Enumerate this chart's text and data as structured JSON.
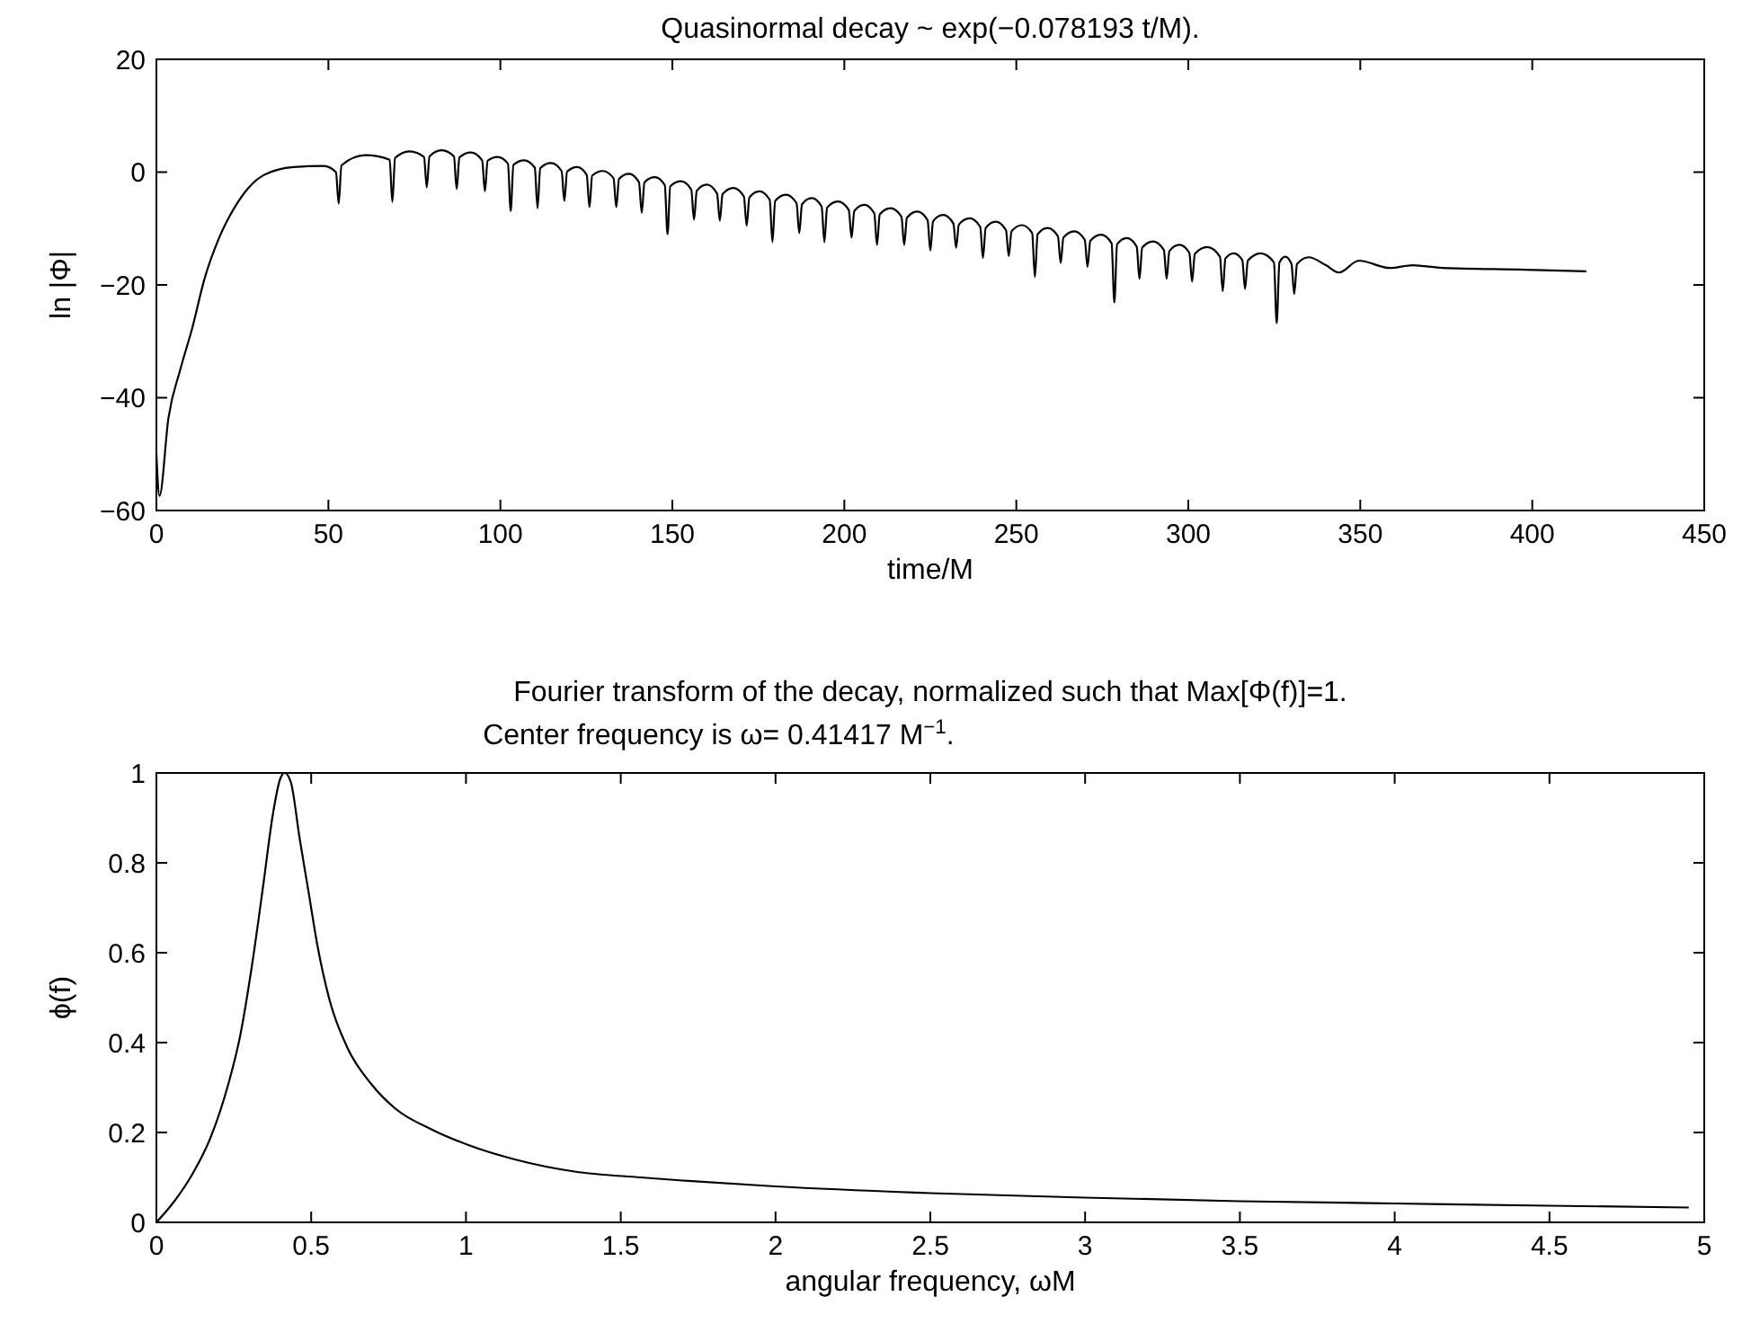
{
  "chart_data": [
    {
      "type": "line",
      "title": "Quasinormal decay ~ exp(−0.078193 t/M).",
      "xlabel": "time/M",
      "ylabel": "ln |Φ|",
      "xlim": [
        0,
        450
      ],
      "ylim": [
        -60,
        20
      ],
      "xticks": [
        0,
        50,
        100,
        150,
        200,
        250,
        300,
        350,
        400,
        450
      ],
      "yticks": [
        {
          "value": -60,
          "label": "−60"
        },
        {
          "value": -40,
          "label": "−40"
        },
        {
          "value": -20,
          "label": "−20"
        },
        0,
        20
      ],
      "series": [
        {
          "color": "#000000",
          "x": [
            0,
            0.9,
            3.5,
            6.9,
            10.4,
            13.9,
            18.2,
            22.6,
            26.9,
            31.3,
            39.9,
            48.6,
            52.2,
            53,
            53.8,
            60.8,
            67.8,
            68.6,
            69.4,
            73.6,
            77.8,
            78.6,
            79.4,
            82.9,
            86.5,
            87.3,
            88.1,
            91.4,
            94.7,
            95.5,
            96.3,
            99.2,
            102.2,
            103,
            103.8,
            106.9,
            110,
            110.8,
            111.6,
            114.7,
            117.8,
            118.6,
            119.4,
            122.3,
            125.1,
            125.9,
            126.7,
            129.8,
            132.9,
            133.7,
            134.5,
            137.4,
            140.3,
            141.1,
            141.9,
            144.9,
            147.8,
            148.6,
            149.4,
            152.5,
            155.5,
            156.3,
            157.1,
            160,
            163,
            163.8,
            164.6,
            167.7,
            170.8,
            171.6,
            172.4,
            175.3,
            178.3,
            179.1,
            179.9,
            183,
            186.1,
            186.9,
            187.7,
            190.5,
            193.4,
            194.2,
            195,
            198.1,
            201.3,
            202.1,
            202.9,
            205.8,
            208.7,
            209.5,
            210.3,
            213.4,
            216.6,
            217.4,
            218.2,
            221.2,
            224.2,
            225,
            225.8,
            228.7,
            231.7,
            232.5,
            233.3,
            236.4,
            239.5,
            240.3,
            241.1,
            244,
            247,
            247.8,
            248.6,
            251.6,
            254.6,
            255.4,
            256.2,
            259.1,
            262.1,
            262.9,
            263.7,
            266.8,
            269.9,
            270.7,
            271.5,
            274.6,
            277.7,
            278.5,
            279.3,
            282.1,
            285,
            285.8,
            286.6,
            289.7,
            292.9,
            293.7,
            294.5,
            297.4,
            300.3,
            301.1,
            301.9,
            305.5,
            309.2,
            310,
            310.8,
            313.2,
            315.7,
            316.5,
            317.3,
            321,
            324.9,
            325.7,
            326.5,
            328.2,
            330,
            330.8,
            331.6,
            335,
            340,
            343.8,
            349.6,
            358.6,
            365.2,
            374,
            398,
            415.7
          ],
          "values": [
            -50,
            -57.4,
            -43.6,
            -35.1,
            -27.7,
            -19.1,
            -11.7,
            -6.4,
            -2.7,
            -0.5,
            0.9,
            1.1,
            0,
            -5.6,
            1.2,
            3.0,
            2.2,
            -5.3,
            2.5,
            3.7,
            2.7,
            -2.7,
            2.8,
            3.9,
            2.8,
            -3.0,
            2.6,
            3.5,
            2.1,
            -3.4,
            2.0,
            2.7,
            1.5,
            -6.9,
            1.3,
            2.1,
            0.8,
            -6.4,
            0.7,
            1.6,
            0.2,
            -5.1,
            0.1,
            0.9,
            -0.5,
            -6.2,
            -0.6,
            0.2,
            -1.1,
            -6.2,
            -1.2,
            -0.3,
            -1.8,
            -7.2,
            -1.8,
            -0.9,
            -2.3,
            -11.0,
            -2.5,
            -1.6,
            -3.1,
            -8.4,
            -3.3,
            -2.2,
            -3.8,
            -8.6,
            -3.9,
            -2.8,
            -4.3,
            -9.5,
            -4.5,
            -3.4,
            -4.9,
            -12.4,
            -5.1,
            -4.0,
            -5.5,
            -10.8,
            -5.7,
            -4.6,
            -6.1,
            -12.4,
            -6.3,
            -5.2,
            -6.7,
            -11.6,
            -6.9,
            -5.8,
            -7.3,
            -12.9,
            -7.5,
            -6.4,
            -7.9,
            -12.9,
            -8.1,
            -7.0,
            -8.5,
            -13.9,
            -8.7,
            -7.6,
            -9.1,
            -13.4,
            -9.3,
            -8.2,
            -9.7,
            -15.2,
            -9.9,
            -8.8,
            -10.3,
            -14.9,
            -10.5,
            -9.4,
            -10.8,
            -18.6,
            -11,
            -9.9,
            -11.4,
            -16.1,
            -11.6,
            -10.5,
            -12,
            -16.8,
            -12.2,
            -11.1,
            -12.6,
            -23.1,
            -12.8,
            -11.7,
            -13.2,
            -18.9,
            -13.4,
            -12.3,
            -13.8,
            -18.9,
            -14,
            -12.9,
            -14.3,
            -19.4,
            -14.5,
            -13.3,
            -15,
            -21.1,
            -15.3,
            -14.4,
            -15.6,
            -20.7,
            -15.7,
            -14.4,
            -16,
            -26.8,
            -16,
            -15,
            -16.3,
            -21.6,
            -16.3,
            -15.1,
            -16.5,
            -17.8,
            -15.7,
            -17,
            -16.5,
            -17,
            -17.3,
            -17.6
          ]
        }
      ]
    },
    {
      "type": "line",
      "title": "Fourier transform of the decay, normalized such that Max[Φ(f)]=1.",
      "subtitle": " Center frequency is ω= 0.41417 M$^{−1}$.",
      "xlabel": "angular frequency, ωM",
      "ylabel": "ϕ(f)",
      "xlim": [
        0,
        5
      ],
      "ylim": [
        0,
        1
      ],
      "xticks": [
        0,
        0.5,
        1,
        1.5,
        2,
        2.5,
        3,
        3.5,
        4,
        4.5,
        5
      ],
      "yticks": [
        0,
        0.2,
        0.4,
        0.6,
        0.8,
        1
      ],
      "series": [
        {
          "color": "#000000",
          "x": [
            0,
            0.058,
            0.116,
            0.174,
            0.232,
            0.27,
            0.309,
            0.347,
            0.376,
            0.4,
            0.414,
            0.434,
            0.463,
            0.492,
            0.521,
            0.56,
            0.618,
            0.695,
            0.772,
            0.888,
            1.004,
            1.158,
            1.351,
            1.564,
            1.7,
            2,
            2.5,
            3,
            3.5,
            4,
            4.5,
            4.95
          ],
          "values": [
            0,
            0.047,
            0.107,
            0.187,
            0.307,
            0.413,
            0.573,
            0.76,
            0.907,
            0.987,
            1.0,
            0.98,
            0.853,
            0.733,
            0.613,
            0.493,
            0.387,
            0.307,
            0.253,
            0.207,
            0.173,
            0.14,
            0.113,
            0.1,
            0.093,
            0.08,
            0.065,
            0.055,
            0.047,
            0.042,
            0.037,
            0.033
          ]
        }
      ]
    }
  ]
}
